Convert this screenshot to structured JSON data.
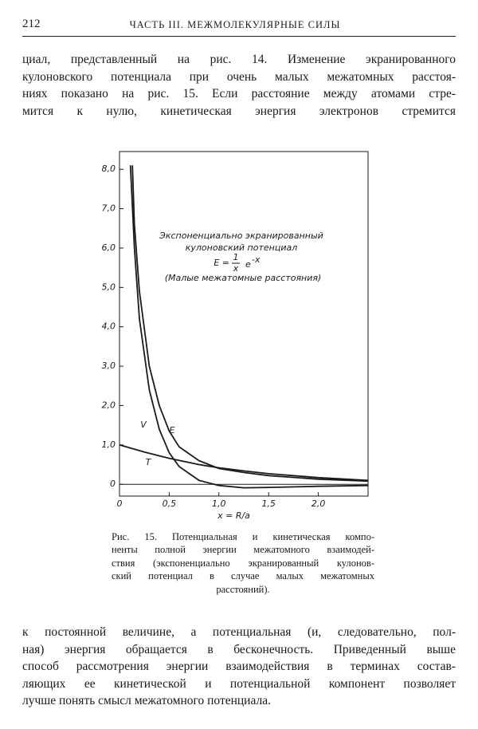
{
  "header": {
    "page_number": "212",
    "running_title": "ЧАСТЬ III. МЕЖМОЛЕКУЛЯРНЫЕ СИЛЫ"
  },
  "paragraph_1": [
    "циал, представленный на рис. 14. Изменение экранированного",
    "кулоновского потенциала при очень малых межатомных расстоя-",
    "ниях показано на рис. 15. Если расстояние между атомами стре-",
    "мится к нулю, кинетическая энергия электронов стремится"
  ],
  "chart_data": {
    "type": "line",
    "annotation": [
      "Экспоненциально экранированный",
      "кулоновский потенциал"
    ],
    "formula": {
      "lhs": "E =",
      "numerator": "1",
      "denominator": "x",
      "base": "e",
      "exponent": "-x"
    },
    "note": "(Малые межатомные расстояния)",
    "x_label": "x = R/a",
    "xlim": [
      0,
      2.5
    ],
    "ylim": [
      -0.3,
      8.45
    ],
    "xticks": [
      0,
      {
        "value": 0.5,
        "label": "0,5"
      },
      {
        "value": 1.0,
        "label": "1,0"
      },
      {
        "value": 1.5,
        "label": "1,5"
      },
      {
        "value": 2.0,
        "label": "2,0"
      }
    ],
    "yticks": [
      0,
      {
        "value": 1,
        "label": "1,0"
      },
      {
        "value": 2,
        "label": "2,0"
      },
      {
        "value": 3,
        "label": "3,0"
      },
      {
        "value": 4,
        "label": "4,0"
      },
      {
        "value": 5,
        "label": "5,0"
      },
      {
        "value": 6,
        "label": "6,0"
      },
      {
        "value": 7,
        "label": "7,0"
      },
      {
        "value": 8,
        "label": "8,0"
      }
    ],
    "grid": false,
    "series": [
      {
        "name": "V",
        "color": "#1a1a1a",
        "x": [
          0.11,
          0.15,
          0.2,
          0.3,
          0.4,
          0.5,
          0.6,
          0.8,
          1.0,
          1.25,
          1.5,
          2.0,
          2.5
        ],
        "values": [
          8.1,
          6.0,
          4.2,
          2.4,
          1.4,
          0.8,
          0.45,
          0.1,
          -0.03,
          -0.09,
          -0.08,
          -0.05,
          -0.03
        ]
      },
      {
        "name": "E",
        "color": "#1a1a1a",
        "x": [
          0.13,
          0.15,
          0.2,
          0.3,
          0.4,
          0.5,
          0.6,
          0.8,
          1.0,
          1.25,
          1.5,
          2.0,
          2.5
        ],
        "values": [
          8.1,
          6.6,
          4.9,
          3.0,
          2.0,
          1.35,
          0.95,
          0.6,
          0.4,
          0.3,
          0.22,
          0.13,
          0.08
        ]
      },
      {
        "name": "T",
        "color": "#1a1a1a",
        "x": [
          0,
          0.25,
          0.5,
          0.8,
          1.0,
          1.25,
          1.5,
          2.0,
          2.5
        ],
        "values": [
          1.0,
          0.82,
          0.66,
          0.5,
          0.42,
          0.34,
          0.27,
          0.17,
          0.1
        ]
      }
    ]
  },
  "caption": [
    "Рис. 15. Потенциальная и кинетическая компо-",
    "ненты полной энергии межатомного взаимодей-",
    "ствия (экспоненциально экранированный кулонов-",
    "ский потенциал в случае малых межатомных",
    "расстояний)."
  ],
  "paragraph_2": [
    "к постоянной величине, а потенциальная (и, следовательно, пол-",
    "ная) энергия обращается в бесконечность. Приведенный выше",
    "способ рассмотрения энергии взаимодействия в терминах состав-",
    "ляющих ее кинетической и потенциальной компонент позволяет",
    "лучше понять смысл межатомного потенциала."
  ]
}
